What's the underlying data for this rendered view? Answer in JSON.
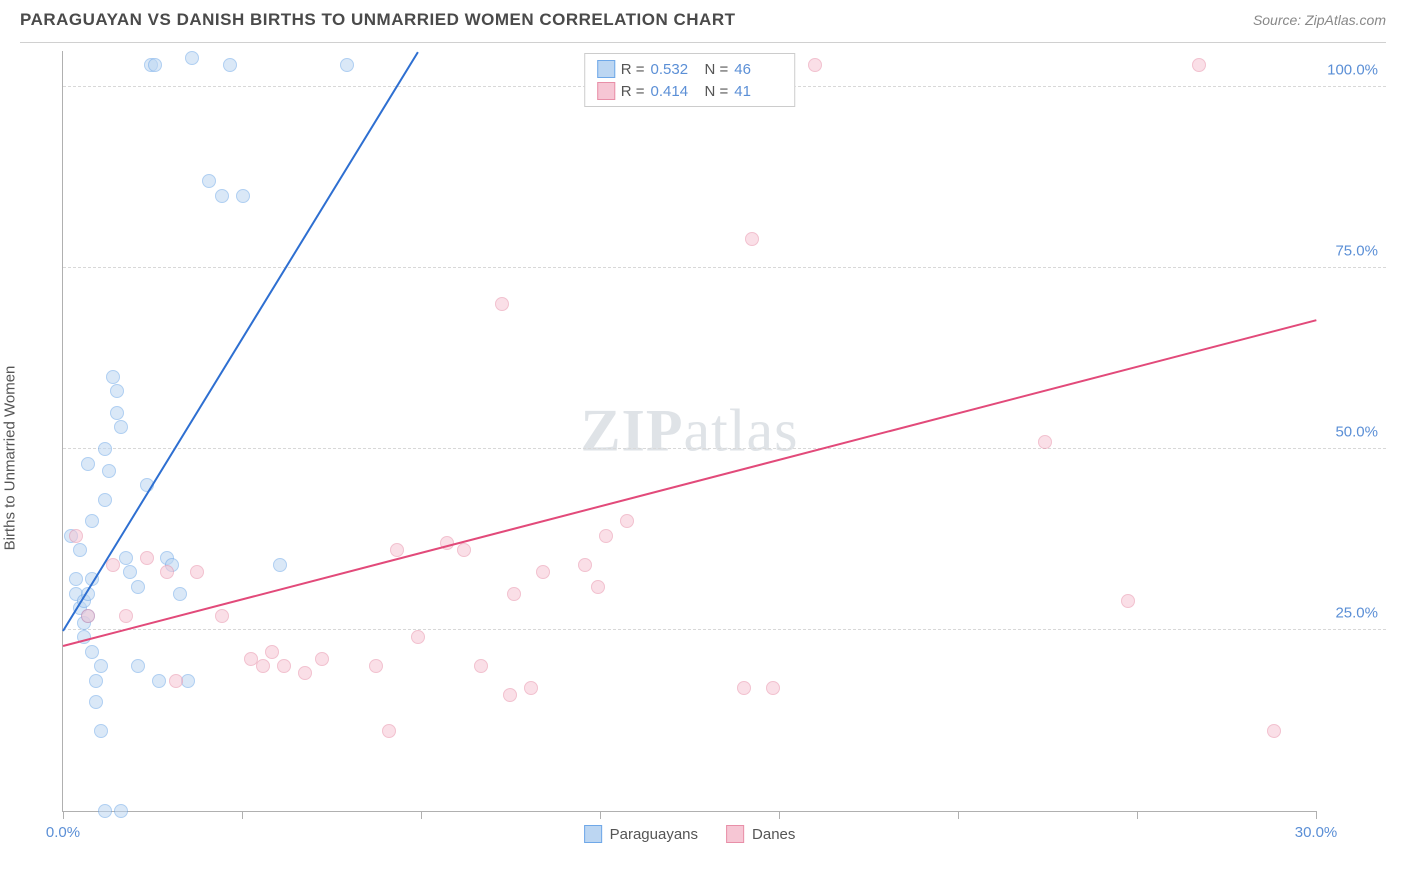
{
  "header": {
    "title": "PARAGUAYAN VS DANISH BIRTHS TO UNMARRIED WOMEN CORRELATION CHART",
    "source": "Source: ZipAtlas.com"
  },
  "ylabel": "Births to Unmarried Women",
  "watermark": {
    "bold": "ZIP",
    "rest": "atlas"
  },
  "chart": {
    "type": "scatter",
    "xlim": [
      0,
      30
    ],
    "ylim": [
      0,
      105
    ],
    "xticks": [
      0,
      4.29,
      8.57,
      12.86,
      17.14,
      21.43,
      25.71,
      30
    ],
    "xtick_labels": {
      "0": "0.0%",
      "30": "30.0%"
    },
    "yticks": [
      25,
      50,
      75,
      100
    ],
    "ytick_labels": {
      "25": "25.0%",
      "50": "50.0%",
      "75": "75.0%",
      "100": "100.0%"
    },
    "grid_color": "#d8d8d8",
    "axis_color": "#b0b0b0",
    "tick_label_color": "#5b8fd6",
    "background_color": "#ffffff",
    "marker_radius": 7,
    "marker_opacity": 0.55,
    "series": [
      {
        "name": "Paraguayans",
        "stroke": "#6fa8e8",
        "fill": "#bcd6f2",
        "trend": {
          "x1": 0,
          "y1": 25,
          "x2": 8.5,
          "y2": 105,
          "color": "#2e6fd1",
          "width": 2
        },
        "points": [
          [
            0.2,
            38
          ],
          [
            0.3,
            32
          ],
          [
            0.3,
            30
          ],
          [
            0.4,
            36
          ],
          [
            0.4,
            28
          ],
          [
            0.5,
            29
          ],
          [
            0.5,
            26
          ],
          [
            0.5,
            24
          ],
          [
            0.6,
            30
          ],
          [
            0.6,
            27
          ],
          [
            0.7,
            32
          ],
          [
            0.7,
            22
          ],
          [
            0.8,
            18
          ],
          [
            0.8,
            15
          ],
          [
            0.9,
            20
          ],
          [
            0.9,
            11
          ],
          [
            1.0,
            50
          ],
          [
            1.0,
            43
          ],
          [
            1.1,
            47
          ],
          [
            1.2,
            60
          ],
          [
            1.3,
            58
          ],
          [
            1.3,
            55
          ],
          [
            1.4,
            53
          ],
          [
            1.5,
            35
          ],
          [
            1.6,
            33
          ],
          [
            1.8,
            31
          ],
          [
            1.8,
            20
          ],
          [
            2.0,
            45
          ],
          [
            2.1,
            103
          ],
          [
            2.2,
            103
          ],
          [
            2.3,
            18
          ],
          [
            2.5,
            35
          ],
          [
            2.6,
            34
          ],
          [
            2.8,
            30
          ],
          [
            3.0,
            18
          ],
          [
            3.1,
            104
          ],
          [
            3.5,
            87
          ],
          [
            3.8,
            85
          ],
          [
            4.0,
            103
          ],
          [
            4.3,
            85
          ],
          [
            5.2,
            34
          ],
          [
            6.8,
            103
          ],
          [
            1.0,
            0
          ],
          [
            1.4,
            0
          ],
          [
            0.6,
            48
          ],
          [
            0.7,
            40
          ]
        ]
      },
      {
        "name": "Danes",
        "stroke": "#e88fa8",
        "fill": "#f6c6d4",
        "trend": {
          "x1": 0,
          "y1": 23,
          "x2": 30,
          "y2": 68,
          "color": "#e24a7a",
          "width": 2
        },
        "points": [
          [
            0.3,
            38
          ],
          [
            0.6,
            27
          ],
          [
            1.2,
            34
          ],
          [
            1.5,
            27
          ],
          [
            2.0,
            35
          ],
          [
            2.5,
            33
          ],
          [
            2.7,
            18
          ],
          [
            3.2,
            33
          ],
          [
            3.8,
            27
          ],
          [
            4.5,
            21
          ],
          [
            4.8,
            20
          ],
          [
            5.0,
            22
          ],
          [
            5.3,
            20
          ],
          [
            5.8,
            19
          ],
          [
            6.2,
            21
          ],
          [
            7.5,
            20
          ],
          [
            7.8,
            11
          ],
          [
            8.0,
            36
          ],
          [
            8.5,
            24
          ],
          [
            9.2,
            37
          ],
          [
            9.6,
            36
          ],
          [
            10.0,
            20
          ],
          [
            10.5,
            70
          ],
          [
            10.7,
            16
          ],
          [
            10.8,
            30
          ],
          [
            11.2,
            17
          ],
          [
            11.5,
            33
          ],
          [
            12.5,
            34
          ],
          [
            12.8,
            31
          ],
          [
            13.0,
            38
          ],
          [
            13.5,
            40
          ],
          [
            14.0,
            103
          ],
          [
            14.3,
            103
          ],
          [
            16.3,
            17
          ],
          [
            16.5,
            79
          ],
          [
            17.0,
            17
          ],
          [
            18.0,
            103
          ],
          [
            23.5,
            51
          ],
          [
            25.5,
            29
          ],
          [
            27.2,
            103
          ],
          [
            29.0,
            11
          ]
        ]
      }
    ],
    "legend_top": [
      {
        "swatch_fill": "#bcd6f2",
        "swatch_stroke": "#6fa8e8",
        "r_label": "R =",
        "r": "0.532",
        "n_label": "N =",
        "n": "46"
      },
      {
        "swatch_fill": "#f6c6d4",
        "swatch_stroke": "#e88fa8",
        "r_label": "R =",
        "r": "0.414",
        "n_label": "N =",
        "n": "41"
      }
    ],
    "legend_bottom": [
      {
        "swatch_fill": "#bcd6f2",
        "swatch_stroke": "#6fa8e8",
        "label": "Paraguayans"
      },
      {
        "swatch_fill": "#f6c6d4",
        "swatch_stroke": "#e88fa8",
        "label": "Danes"
      }
    ]
  }
}
